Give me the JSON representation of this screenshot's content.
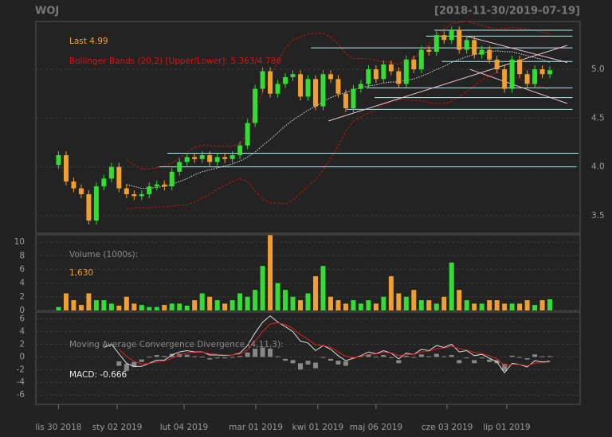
{
  "chart_data": {
    "type": "candlestick",
    "title": "WOJ",
    "subtitle": "[2018-11-30/2019-07-19]",
    "xlim": [
      -3,
      69
    ],
    "xticks": [
      {
        "value": 0,
        "label": "lis 30 2018"
      },
      {
        "value": 7.75,
        "label": "sty 02 2019"
      },
      {
        "value": 16.6,
        "label": "lut 04 2019"
      },
      {
        "value": 26.1,
        "label": "mar 01 2019"
      },
      {
        "value": 34.3,
        "label": "kwi 01 2019"
      },
      {
        "value": 42,
        "label": "maj 06 2019"
      },
      {
        "value": 51.4,
        "label": "cze 03 2019"
      },
      {
        "value": 59.3,
        "label": "lip 01 2019"
      }
    ],
    "ylim": [
      3.32,
      5.49
    ],
    "yticks": [
      3.5,
      {
        "value": 4,
        "label": "4.0"
      },
      4.5,
      {
        "value": 5,
        "label": "5.0"
      }
    ],
    "grid": true,
    "up_color": "#33dd33",
    "down_color": "#f0a030",
    "ohlc": {
      "open": [
        4.02,
        4.12,
        3.85,
        3.78,
        3.72,
        3.45,
        3.8,
        3.88,
        4.0,
        3.78,
        3.72,
        3.7,
        3.72,
        3.8,
        3.82,
        3.8,
        3.95,
        4.05,
        4.1,
        4.08,
        4.12,
        4.05,
        4.1,
        4.08,
        4.12,
        4.22,
        4.45,
        4.8,
        4.98,
        4.75,
        4.85,
        4.92,
        4.95,
        4.72,
        4.9,
        4.62,
        4.95,
        4.9,
        4.75,
        4.6,
        4.8,
        4.85,
        5.0,
        4.9,
        5.05,
        4.98,
        4.85,
        5.1,
        5.0,
        5.2,
        5.18,
        5.35,
        5.3,
        5.4,
        5.2,
        5.3,
        5.15,
        5.2,
        5.1,
        5.0,
        4.8,
        5.1,
        4.95,
        4.85,
        5.0,
        4.95
      ],
      "high": [
        4.16,
        4.16,
        3.89,
        3.82,
        3.76,
        3.84,
        3.92,
        4.04,
        4.04,
        3.82,
        3.76,
        3.76,
        3.84,
        3.86,
        3.86,
        3.99,
        4.09,
        4.14,
        4.14,
        4.16,
        4.16,
        4.14,
        4.14,
        4.16,
        4.26,
        4.49,
        4.84,
        5.02,
        5.02,
        4.89,
        4.96,
        4.99,
        4.99,
        4.94,
        4.94,
        4.99,
        4.99,
        4.94,
        4.79,
        4.84,
        4.89,
        5.04,
        5.04,
        5.09,
        5.09,
        5.02,
        5.14,
        5.14,
        5.24,
        5.24,
        5.39,
        5.39,
        5.44,
        5.44,
        5.34,
        5.34,
        5.24,
        5.24,
        5.14,
        5.04,
        5.14,
        5.14,
        4.99,
        5.04,
        5.04,
        5.03
      ],
      "low": [
        3.98,
        3.81,
        3.74,
        3.68,
        3.41,
        3.41,
        3.76,
        3.84,
        3.74,
        3.68,
        3.66,
        3.66,
        3.68,
        3.76,
        3.76,
        3.76,
        3.91,
        4.01,
        4.04,
        4.04,
        4.01,
        4.01,
        4.04,
        4.04,
        4.08,
        4.18,
        4.41,
        4.76,
        4.71,
        4.71,
        4.81,
        4.88,
        4.68,
        4.68,
        4.58,
        4.58,
        4.86,
        4.71,
        4.56,
        4.56,
        4.76,
        4.81,
        4.86,
        4.86,
        4.94,
        4.81,
        4.81,
        4.96,
        4.96,
        5.14,
        5.14,
        5.26,
        5.26,
        5.16,
        5.16,
        5.11,
        5.11,
        5.06,
        4.96,
        4.76,
        4.76,
        4.91,
        4.81,
        4.81,
        4.91,
        4.91
      ],
      "close": [
        4.12,
        3.85,
        3.78,
        3.72,
        3.45,
        3.8,
        3.88,
        4.0,
        3.78,
        3.72,
        3.7,
        3.72,
        3.8,
        3.82,
        3.8,
        3.95,
        4.05,
        4.1,
        4.08,
        4.12,
        4.05,
        4.1,
        4.08,
        4.12,
        4.22,
        4.45,
        4.8,
        4.98,
        4.75,
        4.85,
        4.92,
        4.95,
        4.72,
        4.9,
        4.62,
        4.95,
        4.9,
        4.75,
        4.6,
        4.8,
        4.85,
        5.0,
        4.9,
        5.05,
        4.98,
        4.85,
        5.1,
        5.0,
        5.2,
        5.18,
        5.35,
        5.3,
        5.4,
        5.2,
        5.3,
        5.15,
        5.2,
        5.1,
        5.0,
        4.8,
        5.1,
        4.95,
        4.85,
        5.0,
        4.95,
        4.99
      ]
    },
    "annotations": {
      "last": "Last 4.99",
      "bbands": "Bollinger Bands (20,2) [Upper/Lower]: 5.363/4.786"
    },
    "bbands": {
      "color": "#cc1111",
      "middle_color": "#dddddd",
      "upper": [
        null,
        null,
        null,
        null,
        null,
        null,
        null,
        null,
        null,
        4.07,
        4.02,
        3.98,
        3.98,
        3.99,
        4.01,
        4.04,
        4.09,
        4.15,
        4.2,
        4.22,
        4.22,
        4.21,
        4.21,
        4.21,
        4.24,
        4.35,
        4.55,
        4.77,
        4.93,
        5.07,
        5.22,
        5.3,
        5.33,
        5.36,
        5.37,
        5.37,
        5.33,
        5.26,
        5.16,
        5.11,
        5.11,
        5.11,
        5.09,
        5.08,
        5.07,
        5.05,
        5.09,
        5.12,
        5.18,
        5.26,
        5.35,
        5.41,
        5.47,
        5.48,
        5.49,
        5.47,
        5.45,
        5.43,
        5.41,
        5.42,
        5.43,
        5.42,
        5.41,
        5.4,
        5.38,
        5.363
      ],
      "middle": [
        null,
        null,
        null,
        null,
        null,
        null,
        null,
        null,
        null,
        3.82,
        3.8,
        3.78,
        3.78,
        3.79,
        3.8,
        3.82,
        3.85,
        3.88,
        3.92,
        3.95,
        3.97,
        3.99,
        4.01,
        4.03,
        4.06,
        4.1,
        4.15,
        4.22,
        4.28,
        4.35,
        4.42,
        4.48,
        4.53,
        4.58,
        4.62,
        4.67,
        4.71,
        4.74,
        4.76,
        4.79,
        4.81,
        4.83,
        4.84,
        4.86,
        4.87,
        4.87,
        4.89,
        4.9,
        4.93,
        4.96,
        5.0,
        5.03,
        5.07,
        5.1,
        5.13,
        5.15,
        5.17,
        5.18,
        5.19,
        5.18,
        5.18,
        5.16,
        5.14,
        5.12,
        5.1,
        5.07
      ],
      "lower": [
        null,
        null,
        null,
        null,
        null,
        null,
        null,
        null,
        null,
        3.57,
        3.58,
        3.58,
        3.58,
        3.59,
        3.59,
        3.6,
        3.61,
        3.61,
        3.64,
        3.68,
        3.72,
        3.77,
        3.81,
        3.85,
        3.88,
        3.85,
        3.75,
        3.67,
        3.63,
        3.63,
        3.62,
        3.66,
        3.73,
        3.8,
        3.87,
        3.97,
        4.09,
        4.22,
        4.36,
        4.47,
        4.51,
        4.55,
        4.59,
        4.64,
        4.67,
        4.69,
        4.69,
        4.68,
        4.68,
        4.66,
        4.65,
        4.65,
        4.67,
        4.72,
        4.77,
        4.83,
        4.89,
        4.93,
        4.97,
        4.94,
        4.93,
        4.9,
        4.87,
        4.84,
        4.82,
        4.786
      ]
    },
    "level_color": "#aeeeee",
    "levels": [
      {
        "price": 5.4,
        "from": 49.7,
        "to": 68
      },
      {
        "price": 5.34,
        "from": 48.6,
        "to": 68
      },
      {
        "price": 5.22,
        "from": 33.4,
        "to": 68
      },
      {
        "price": 5.08,
        "from": 50.7,
        "to": 68
      },
      {
        "price": 4.81,
        "from": 40.7,
        "to": 68
      },
      {
        "price": 4.71,
        "from": 41.8,
        "to": 68
      },
      {
        "price": 4.59,
        "from": 38.1,
        "to": 68
      },
      {
        "price": 4.14,
        "from": 14.4,
        "to": 68.8
      },
      {
        "price": 4.0,
        "from": 13.3,
        "to": 68.5
      }
    ],
    "trend_color": "#f0c0d0",
    "trendlines": [
      {
        "x": [
          35.7,
          67.3
        ],
        "y": [
          4.47,
          5.245
        ]
      },
      {
        "x": [
          53.9,
          67.3
        ],
        "y": [
          5.34,
          5.07
        ]
      },
      {
        "x": [
          54.4,
          67.3
        ],
        "y": [
          5.0,
          4.65
        ]
      }
    ],
    "volume": {
      "type": "bar",
      "title": "Volume (1000s):",
      "last_label": "1,630",
      "values": [
        0.5,
        2.5,
        1.5,
        0.8,
        2.5,
        1.5,
        1.5,
        1,
        0.7,
        2,
        1,
        0.8,
        0.5,
        0.5,
        0.8,
        1,
        1,
        0.7,
        1.5,
        2.5,
        2,
        1.5,
        1,
        1.5,
        2.5,
        2,
        3,
        6.5,
        11,
        4,
        3,
        2,
        1.5,
        2.5,
        5,
        6.5,
        2,
        1.5,
        1,
        1.5,
        1,
        1.5,
        1,
        2,
        5,
        2.5,
        2,
        3,
        1.5,
        1.5,
        1,
        2,
        7,
        3,
        1.5,
        1,
        1,
        1.5,
        1.5,
        1,
        1,
        1,
        1.5,
        0.8,
        1.5,
        1.63
      ],
      "ylim": [
        0,
        11.06
      ],
      "yticks": [
        0,
        2,
        4,
        6,
        8,
        10
      ]
    },
    "macd": {
      "type": "line",
      "title": "Moving Average Convergence Divergence (4,11,3):",
      "label": "MACD: -0.666",
      "macd_color": "#dddddd",
      "signal_color": "#dd2222",
      "hist_color": "#888888",
      "macd": [
        null,
        null,
        null,
        null,
        null,
        null,
        1.5,
        2.0,
        0.5,
        -1.0,
        -1.5,
        -1.5,
        -1.0,
        -0.5,
        -0.5,
        0.3,
        0.8,
        1.0,
        0.8,
        0.8,
        0.3,
        0.3,
        0.2,
        0.3,
        0.6,
        1.8,
        3.8,
        5.5,
        6.5,
        5.5,
        4.8,
        4.0,
        2.5,
        2.2,
        1.0,
        1.8,
        1.2,
        0.2,
        -0.6,
        -0.2,
        0.2,
        0.8,
        0.5,
        1.0,
        0.6,
        -0.3,
        0.6,
        0.4,
        1.2,
        1.0,
        1.8,
        1.5,
        2.0,
        0.8,
        1.0,
        0.2,
        0.4,
        -0.2,
        -0.8,
        -2.5,
        -1.0,
        -1.2,
        -1.6,
        -0.6,
        -0.8,
        -0.666
      ],
      "signal": [
        null,
        null,
        null,
        null,
        null,
        null,
        null,
        null,
        1.2,
        0.1,
        -0.7,
        -1.1,
        -1.05,
        -0.8,
        -0.65,
        -0.2,
        0.3,
        0.65,
        0.7,
        0.75,
        0.5,
        0.4,
        0.3,
        0.3,
        0.45,
        1.1,
        2.5,
        4.0,
        5.2,
        5.4,
        5.1,
        4.5,
        3.5,
        2.8,
        1.9,
        1.8,
        1.5,
        0.8,
        0.1,
        -0.1,
        0.05,
        0.4,
        0.45,
        0.7,
        0.65,
        0.2,
        0.4,
        0.4,
        0.8,
        0.9,
        1.3,
        1.4,
        1.7,
        1.3,
        1.1,
        0.7,
        0.5,
        0.2,
        -0.3,
        -1.4,
        -1.2,
        -1.2,
        -1.4,
        -1.0,
        -0.9,
        -0.8
      ],
      "ylim": [
        -7.5,
        7.1
      ],
      "yticks": [
        -6,
        -4,
        -2,
        0,
        2,
        4,
        6
      ]
    }
  }
}
